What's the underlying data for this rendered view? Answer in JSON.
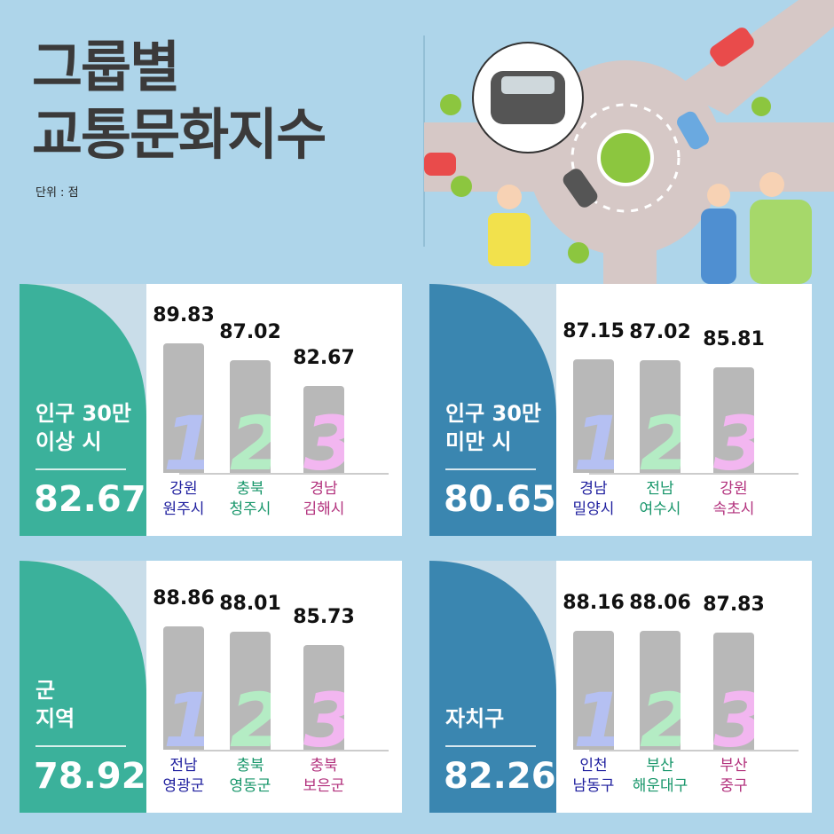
{
  "header": {
    "title": "그룹별\n교통문화지수",
    "unit": "단위 : 점"
  },
  "chart_data": [
    {
      "type": "bar",
      "title": "인구 30만\n이상 시",
      "value": 82.67,
      "color": "#3bb19b",
      "categories": [
        "강원\n원주시",
        "충북\n청주시",
        "경남\n김해시"
      ],
      "values": [
        89.83,
        87.02,
        82.67
      ],
      "ranks": [
        1,
        2,
        3
      ],
      "ylim": [
        68,
        92
      ]
    },
    {
      "type": "bar",
      "title": "인구 30만\n미만 시",
      "value": 80.65,
      "color": "#3a86b0",
      "categories": [
        "경남\n밀양시",
        "전남\n여수시",
        "강원\n속초시"
      ],
      "values": [
        87.15,
        87.02,
        85.81
      ],
      "ranks": [
        1,
        2,
        3
      ],
      "ylim": [
        68,
        92
      ]
    },
    {
      "type": "bar",
      "title": "군\n지역",
      "value": 78.92,
      "color": "#3bb19b",
      "categories": [
        "전남\n영광군",
        "충북\n영동군",
        "충북\n보은군"
      ],
      "values": [
        88.86,
        88.01,
        85.73
      ],
      "ranks": [
        1,
        2,
        3
      ],
      "ylim": [
        68,
        92
      ]
    },
    {
      "type": "bar",
      "title": "자치구",
      "value": 82.26,
      "color": "#3a86b0",
      "categories": [
        "인천\n남동구",
        "부산\n해운대구",
        "부산\n중구"
      ],
      "values": [
        88.16,
        88.06,
        87.83
      ],
      "ranks": [
        1,
        2,
        3
      ],
      "ylim": [
        68,
        92
      ]
    }
  ]
}
